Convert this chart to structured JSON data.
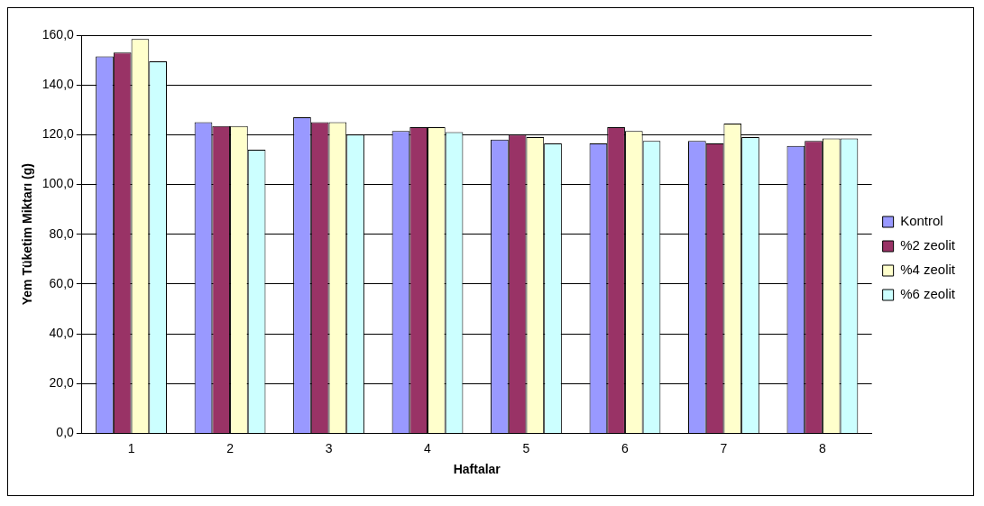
{
  "chart_data": {
    "type": "bar",
    "xlabel": "Haftalar",
    "ylabel": "Yem Tüketim Miktarı (g)",
    "categories": [
      "1",
      "2",
      "3",
      "4",
      "5",
      "6",
      "7",
      "8"
    ],
    "series": [
      {
        "name": "Kontrol",
        "color": "#9999ff",
        "values": [
          151.5,
          125,
          127,
          121.5,
          118,
          116.5,
          117.5,
          115.5
        ]
      },
      {
        "name": "%2 zeolit",
        "color": "#993366",
        "values": [
          153,
          123.5,
          125,
          123,
          120,
          123,
          116.5,
          117.5
        ]
      },
      {
        "name": "%4 zeolit",
        "color": "#ffffcc",
        "values": [
          158.5,
          123.5,
          125,
          123,
          119,
          121.5,
          124.5,
          118.5
        ]
      },
      {
        "name": "%6 zeolit",
        "color": "#ccffff",
        "values": [
          149.5,
          114,
          120,
          121,
          116.5,
          117.5,
          119,
          118.5
        ]
      }
    ],
    "ylim": [
      0,
      160
    ],
    "yticks": [
      {
        "value": 0,
        "label": "0,0"
      },
      {
        "value": 20,
        "label": "20,0"
      },
      {
        "value": 40,
        "label": "40,0"
      },
      {
        "value": 60,
        "label": "60,0"
      },
      {
        "value": 80,
        "label": "80,0"
      },
      {
        "value": 100,
        "label": "100,0"
      },
      {
        "value": 120,
        "label": "120,0"
      },
      {
        "value": 140,
        "label": "140,0"
      },
      {
        "value": 160,
        "label": "160,0"
      }
    ],
    "grid": "y",
    "legend": "right"
  }
}
